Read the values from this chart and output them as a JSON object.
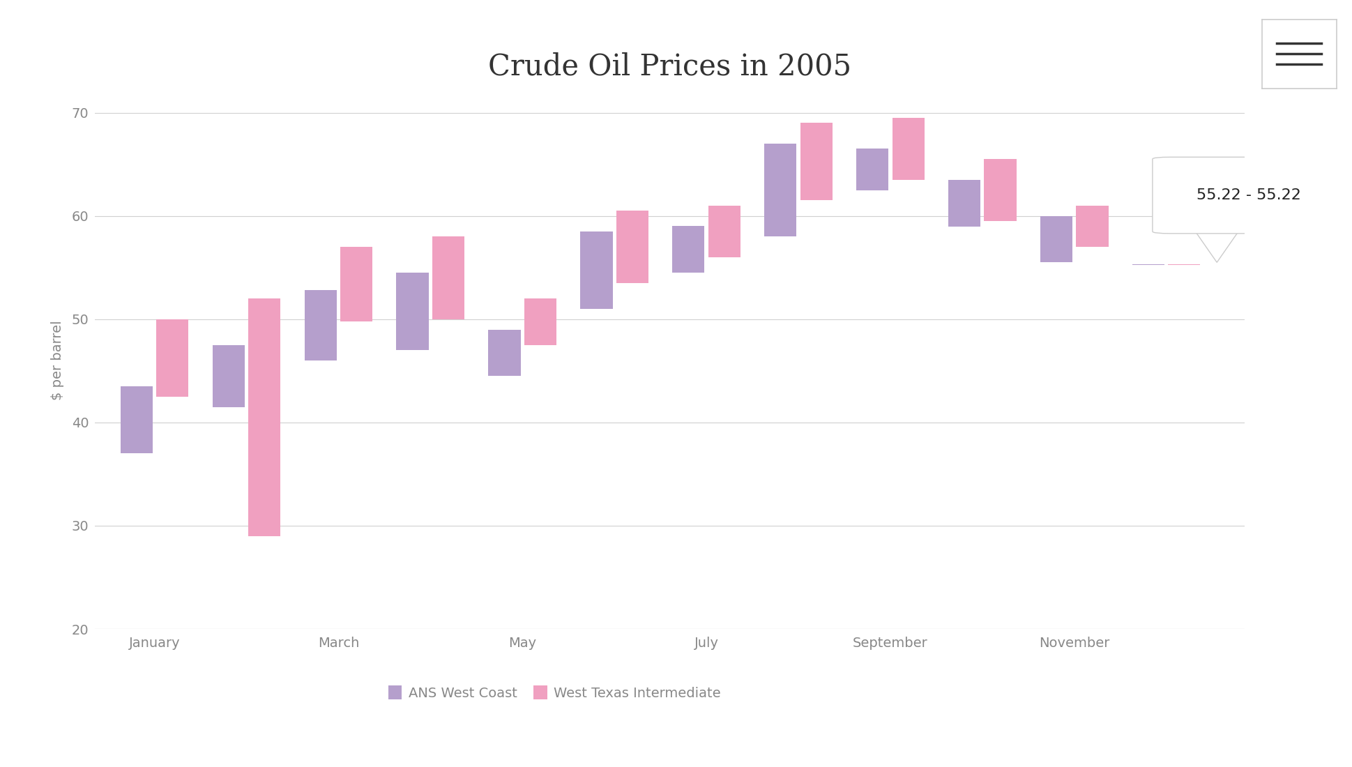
{
  "title": "Crude Oil Prices in 2005",
  "ylabel": "$ per barrel",
  "ylim": [
    20,
    72
  ],
  "yticks": [
    20,
    30,
    40,
    50,
    60,
    70
  ],
  "bg_color": "#ffffff",
  "grid_color": "#d0d0d0",
  "series1_color": "#b59fcc",
  "series2_color": "#f0a0c0",
  "series1_label": "ANS West Coast",
  "series2_label": "West Texas Intermediate",
  "month_positions": [
    0,
    1,
    2,
    3,
    4,
    5,
    6,
    7,
    8,
    9,
    10,
    11
  ],
  "xtick_labels": [
    "January",
    "March",
    "May",
    "July",
    "September",
    "November"
  ],
  "xtick_positions": [
    0,
    2,
    4,
    6,
    8,
    10
  ],
  "ans_low": [
    37.0,
    41.5,
    46.0,
    47.0,
    44.5,
    51.0,
    54.5,
    58.0,
    62.5,
    59.0,
    55.5,
    55.22
  ],
  "ans_high": [
    43.5,
    47.5,
    52.8,
    54.5,
    49.0,
    58.5,
    59.0,
    67.0,
    66.5,
    63.5,
    60.0,
    55.22
  ],
  "wti_low": [
    42.5,
    29.0,
    49.8,
    50.0,
    47.5,
    53.5,
    56.0,
    61.5,
    63.5,
    59.5,
    57.0,
    55.22
  ],
  "wti_high": [
    50.0,
    52.0,
    57.0,
    58.0,
    52.0,
    60.5,
    61.0,
    69.0,
    69.5,
    65.5,
    61.0,
    55.22
  ],
  "tooltip_text": "55.22 - 55.22",
  "bar_width": 0.35,
  "title_fontsize": 30,
  "axis_fontsize": 14,
  "tick_fontsize": 14,
  "legend_fontsize": 14
}
